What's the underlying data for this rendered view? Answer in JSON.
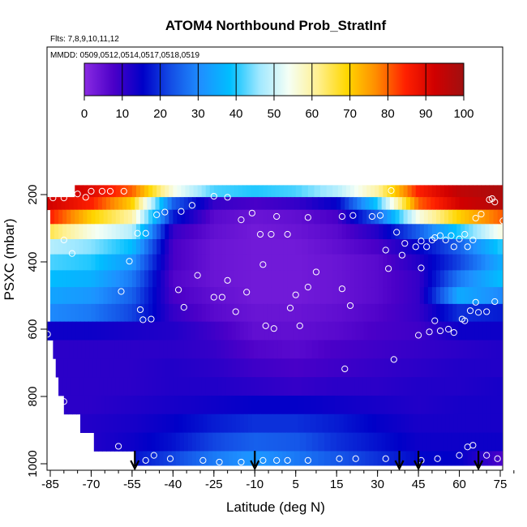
{
  "chart_data": {
    "type": "heatmap",
    "title": "ATOM4 Northbound Prob_StratInf",
    "subtitle_flights": "Flts: 7,8,9,10,11,12",
    "subtitle_dates": "MMDD: 0509,0512,0514,0517,0518,0519",
    "xlabel": "Latitude (deg N)",
    "ylabel": "PSXC (mbar)",
    "xlim": [
      -87,
      83
    ],
    "ylim": [
      1010,
      140
    ],
    "x_ticks": [
      -85,
      -70,
      -55,
      -40,
      -25,
      -10,
      5,
      15,
      30,
      45,
      60,
      75
    ],
    "y_ticks": [
      200,
      400,
      600,
      800,
      1000
    ],
    "colorbar": {
      "min": 0,
      "max": 100,
      "ticks": [
        0,
        10,
        20,
        30,
        40,
        50,
        60,
        70,
        80,
        90,
        100
      ],
      "colors": [
        "#8a2be2",
        "#4b00c8",
        "#0000c8",
        "#1450e6",
        "#1e90ff",
        "#00bfff",
        "#a0e8ff",
        "#f5fff5",
        "#fff090",
        "#ffd700",
        "#ff8c00",
        "#ff2000",
        "#d00000",
        "#a01010"
      ]
    },
    "pressure_levels": [
      190,
      225,
      265,
      310,
      355,
      400,
      450,
      500,
      550,
      605,
      660,
      715,
      770,
      825,
      880,
      935,
      990
    ],
    "lat_nodes": [
      -85,
      -70,
      -55,
      -40,
      -25,
      -10,
      5,
      15,
      30,
      45,
      60,
      75,
      82
    ],
    "grid_values": [
      [
        95,
        90,
        80,
        55,
        42,
        40,
        42,
        48,
        60,
        85,
        95,
        98,
        98
      ],
      [
        92,
        85,
        70,
        25,
        10,
        8,
        10,
        15,
        40,
        80,
        92,
        97,
        97
      ],
      [
        85,
        70,
        60,
        18,
        6,
        4,
        5,
        8,
        25,
        55,
        70,
        80,
        82
      ],
      [
        65,
        55,
        48,
        10,
        5,
        3,
        4,
        6,
        12,
        25,
        40,
        55,
        58
      ],
      [
        48,
        45,
        38,
        8,
        4,
        3,
        3,
        5,
        8,
        15,
        25,
        40,
        42
      ],
      [
        42,
        40,
        32,
        8,
        4,
        3,
        3,
        4,
        6,
        12,
        22,
        35,
        38
      ],
      [
        38,
        36,
        28,
        7,
        4,
        3,
        3,
        4,
        6,
        10,
        28,
        38,
        40
      ],
      [
        34,
        32,
        25,
        8,
        5,
        3,
        3,
        4,
        6,
        10,
        35,
        30,
        26
      ],
      [
        30,
        28,
        22,
        10,
        6,
        4,
        4,
        5,
        7,
        10,
        20,
        18,
        18
      ],
      [
        14,
        14,
        13,
        12,
        9,
        5,
        5,
        6,
        8,
        9,
        14,
        14,
        14
      ],
      [
        11,
        11,
        11,
        11,
        10,
        7,
        6,
        8,
        9,
        10,
        11,
        12,
        12
      ],
      [
        11,
        11,
        11,
        12,
        11,
        9,
        8,
        9,
        10,
        11,
        12,
        12,
        12
      ],
      [
        11,
        11,
        11,
        12,
        12,
        11,
        10,
        11,
        11,
        12,
        12,
        13,
        13
      ],
      [
        11,
        11,
        12,
        13,
        14,
        15,
        15,
        14,
        13,
        12,
        13,
        13,
        13
      ],
      [
        11,
        12,
        13,
        15,
        18,
        20,
        20,
        18,
        15,
        13,
        13,
        13,
        13
      ],
      [
        11,
        12,
        14,
        17,
        22,
        25,
        24,
        20,
        17,
        14,
        14,
        14,
        14
      ],
      [
        12,
        14,
        17,
        22,
        28,
        32,
        28,
        24,
        20,
        16,
        15,
        8,
        5
      ]
    ],
    "row_lat_start": [
      -76,
      -87,
      -85,
      -85,
      -85,
      -85,
      -85,
      -85,
      -85,
      -86,
      -84,
      -83,
      -82,
      -80,
      -74,
      -69,
      -54
    ],
    "row_lat_end": [
      78,
      81,
      81,
      82,
      82,
      82,
      82,
      82,
      82,
      81,
      80,
      80,
      80,
      80,
      80,
      80,
      82
    ],
    "samples": [
      {
        "lat": -84,
        "p": 210
      },
      {
        "lat": -80,
        "p": 210
      },
      {
        "lat": -75,
        "p": 198
      },
      {
        "lat": -72,
        "p": 208
      },
      {
        "lat": -70,
        "p": 190
      },
      {
        "lat": -66,
        "p": 190
      },
      {
        "lat": -63,
        "p": 190
      },
      {
        "lat": -58,
        "p": 190
      },
      {
        "lat": -46,
        "p": 260
      },
      {
        "lat": -43,
        "p": 252
      },
      {
        "lat": -37,
        "p": 250
      },
      {
        "lat": -33,
        "p": 232
      },
      {
        "lat": -25,
        "p": 205
      },
      {
        "lat": -20,
        "p": 208
      },
      {
        "lat": -15,
        "p": 275
      },
      {
        "lat": -11,
        "p": 255
      },
      {
        "lat": -8,
        "p": 318
      },
      {
        "lat": -2,
        "p": 265
      },
      {
        "lat": -4,
        "p": 318
      },
      {
        "lat": 2,
        "p": 318
      },
      {
        "lat": 8,
        "p": 268
      },
      {
        "lat": 17,
        "p": 265
      },
      {
        "lat": 21,
        "p": 262
      },
      {
        "lat": 28,
        "p": 265
      },
      {
        "lat": 35,
        "p": 188
      },
      {
        "lat": 31,
        "p": 262
      },
      {
        "lat": 33,
        "p": 365
      },
      {
        "lat": 37,
        "p": 312
      },
      {
        "lat": 40,
        "p": 345
      },
      {
        "lat": 44,
        "p": 355
      },
      {
        "lat": 46,
        "p": 338
      },
      {
        "lat": 48,
        "p": 355
      },
      {
        "lat": 50,
        "p": 335
      },
      {
        "lat": 51,
        "p": 328
      },
      {
        "lat": 53,
        "p": 322
      },
      {
        "lat": 55,
        "p": 335
      },
      {
        "lat": 57,
        "p": 322
      },
      {
        "lat": 58,
        "p": 355
      },
      {
        "lat": 60,
        "p": 332
      },
      {
        "lat": 62,
        "p": 318
      },
      {
        "lat": 63,
        "p": 355
      },
      {
        "lat": 65,
        "p": 335
      },
      {
        "lat": 66,
        "p": 270
      },
      {
        "lat": 68,
        "p": 258
      },
      {
        "lat": 71,
        "p": 215
      },
      {
        "lat": 72,
        "p": 212
      },
      {
        "lat": 73,
        "p": 222
      },
      {
        "lat": 76,
        "p": 278
      },
      {
        "lat": 78,
        "p": 325
      },
      {
        "lat": 79,
        "p": 278
      },
      {
        "lat": 80,
        "p": 380
      },
      {
        "lat": -80,
        "p": 335
      },
      {
        "lat": -77,
        "p": 375
      },
      {
        "lat": -53,
        "p": 315
      },
      {
        "lat": -50,
        "p": 315
      },
      {
        "lat": -56,
        "p": 398
      },
      {
        "lat": -59,
        "p": 488
      },
      {
        "lat": -52,
        "p": 542
      },
      {
        "lat": -51,
        "p": 572
      },
      {
        "lat": -48,
        "p": 570
      },
      {
        "lat": -38,
        "p": 483
      },
      {
        "lat": -36,
        "p": 535
      },
      {
        "lat": -31,
        "p": 440
      },
      {
        "lat": -25,
        "p": 505
      },
      {
        "lat": -22,
        "p": 505
      },
      {
        "lat": -20,
        "p": 455
      },
      {
        "lat": -13,
        "p": 490
      },
      {
        "lat": -17,
        "p": 548
      },
      {
        "lat": -7,
        "p": 408
      },
      {
        "lat": -6,
        "p": 590
      },
      {
        "lat": -3,
        "p": 598
      },
      {
        "lat": 3,
        "p": 537
      },
      {
        "lat": 5,
        "p": 498
      },
      {
        "lat": 6,
        "p": 590
      },
      {
        "lat": 8,
        "p": 475
      },
      {
        "lat": 10,
        "p": 430
      },
      {
        "lat": 17,
        "p": 480
      },
      {
        "lat": 20,
        "p": 530
      },
      {
        "lat": 34,
        "p": 420
      },
      {
        "lat": 39,
        "p": 380
      },
      {
        "lat": 46,
        "p": 418
      },
      {
        "lat": 51,
        "p": 575
      },
      {
        "lat": 53,
        "p": 605
      },
      {
        "lat": 45,
        "p": 618
      },
      {
        "lat": 49,
        "p": 608
      },
      {
        "lat": 56,
        "p": 600
      },
      {
        "lat": 58,
        "p": 610
      },
      {
        "lat": 61,
        "p": 570
      },
      {
        "lat": 62,
        "p": 575
      },
      {
        "lat": 64,
        "p": 545
      },
      {
        "lat": 66,
        "p": 520
      },
      {
        "lat": 67,
        "p": 550
      },
      {
        "lat": 70,
        "p": 548
      },
      {
        "lat": 73,
        "p": 518
      },
      {
        "lat": 78,
        "p": 500
      },
      {
        "lat": 82,
        "p": 550
      },
      {
        "lat": -86,
        "p": 615
      },
      {
        "lat": 36,
        "p": 690
      },
      {
        "lat": 18,
        "p": 718
      },
      {
        "lat": -80,
        "p": 815
      },
      {
        "lat": -60,
        "p": 948
      },
      {
        "lat": -47,
        "p": 975
      },
      {
        "lat": -50,
        "p": 990
      },
      {
        "lat": -41,
        "p": 985
      },
      {
        "lat": -29,
        "p": 990
      },
      {
        "lat": -23,
        "p": 995
      },
      {
        "lat": -15,
        "p": 995
      },
      {
        "lat": -7,
        "p": 990
      },
      {
        "lat": -2,
        "p": 990
      },
      {
        "lat": 2,
        "p": 990
      },
      {
        "lat": 8,
        "p": 990
      },
      {
        "lat": 16,
        "p": 985
      },
      {
        "lat": 22,
        "p": 985
      },
      {
        "lat": 33,
        "p": 985
      },
      {
        "lat": 46,
        "p": 990
      },
      {
        "lat": 52,
        "p": 985
      },
      {
        "lat": 60,
        "p": 975
      },
      {
        "lat": 63,
        "p": 950
      },
      {
        "lat": 65,
        "p": 945
      },
      {
        "lat": 70,
        "p": 975
      },
      {
        "lat": 74,
        "p": 985
      },
      {
        "lat": 80,
        "p": 990
      }
    ],
    "arrows_lat": [
      -54,
      -10,
      38,
      45,
      67
    ]
  }
}
